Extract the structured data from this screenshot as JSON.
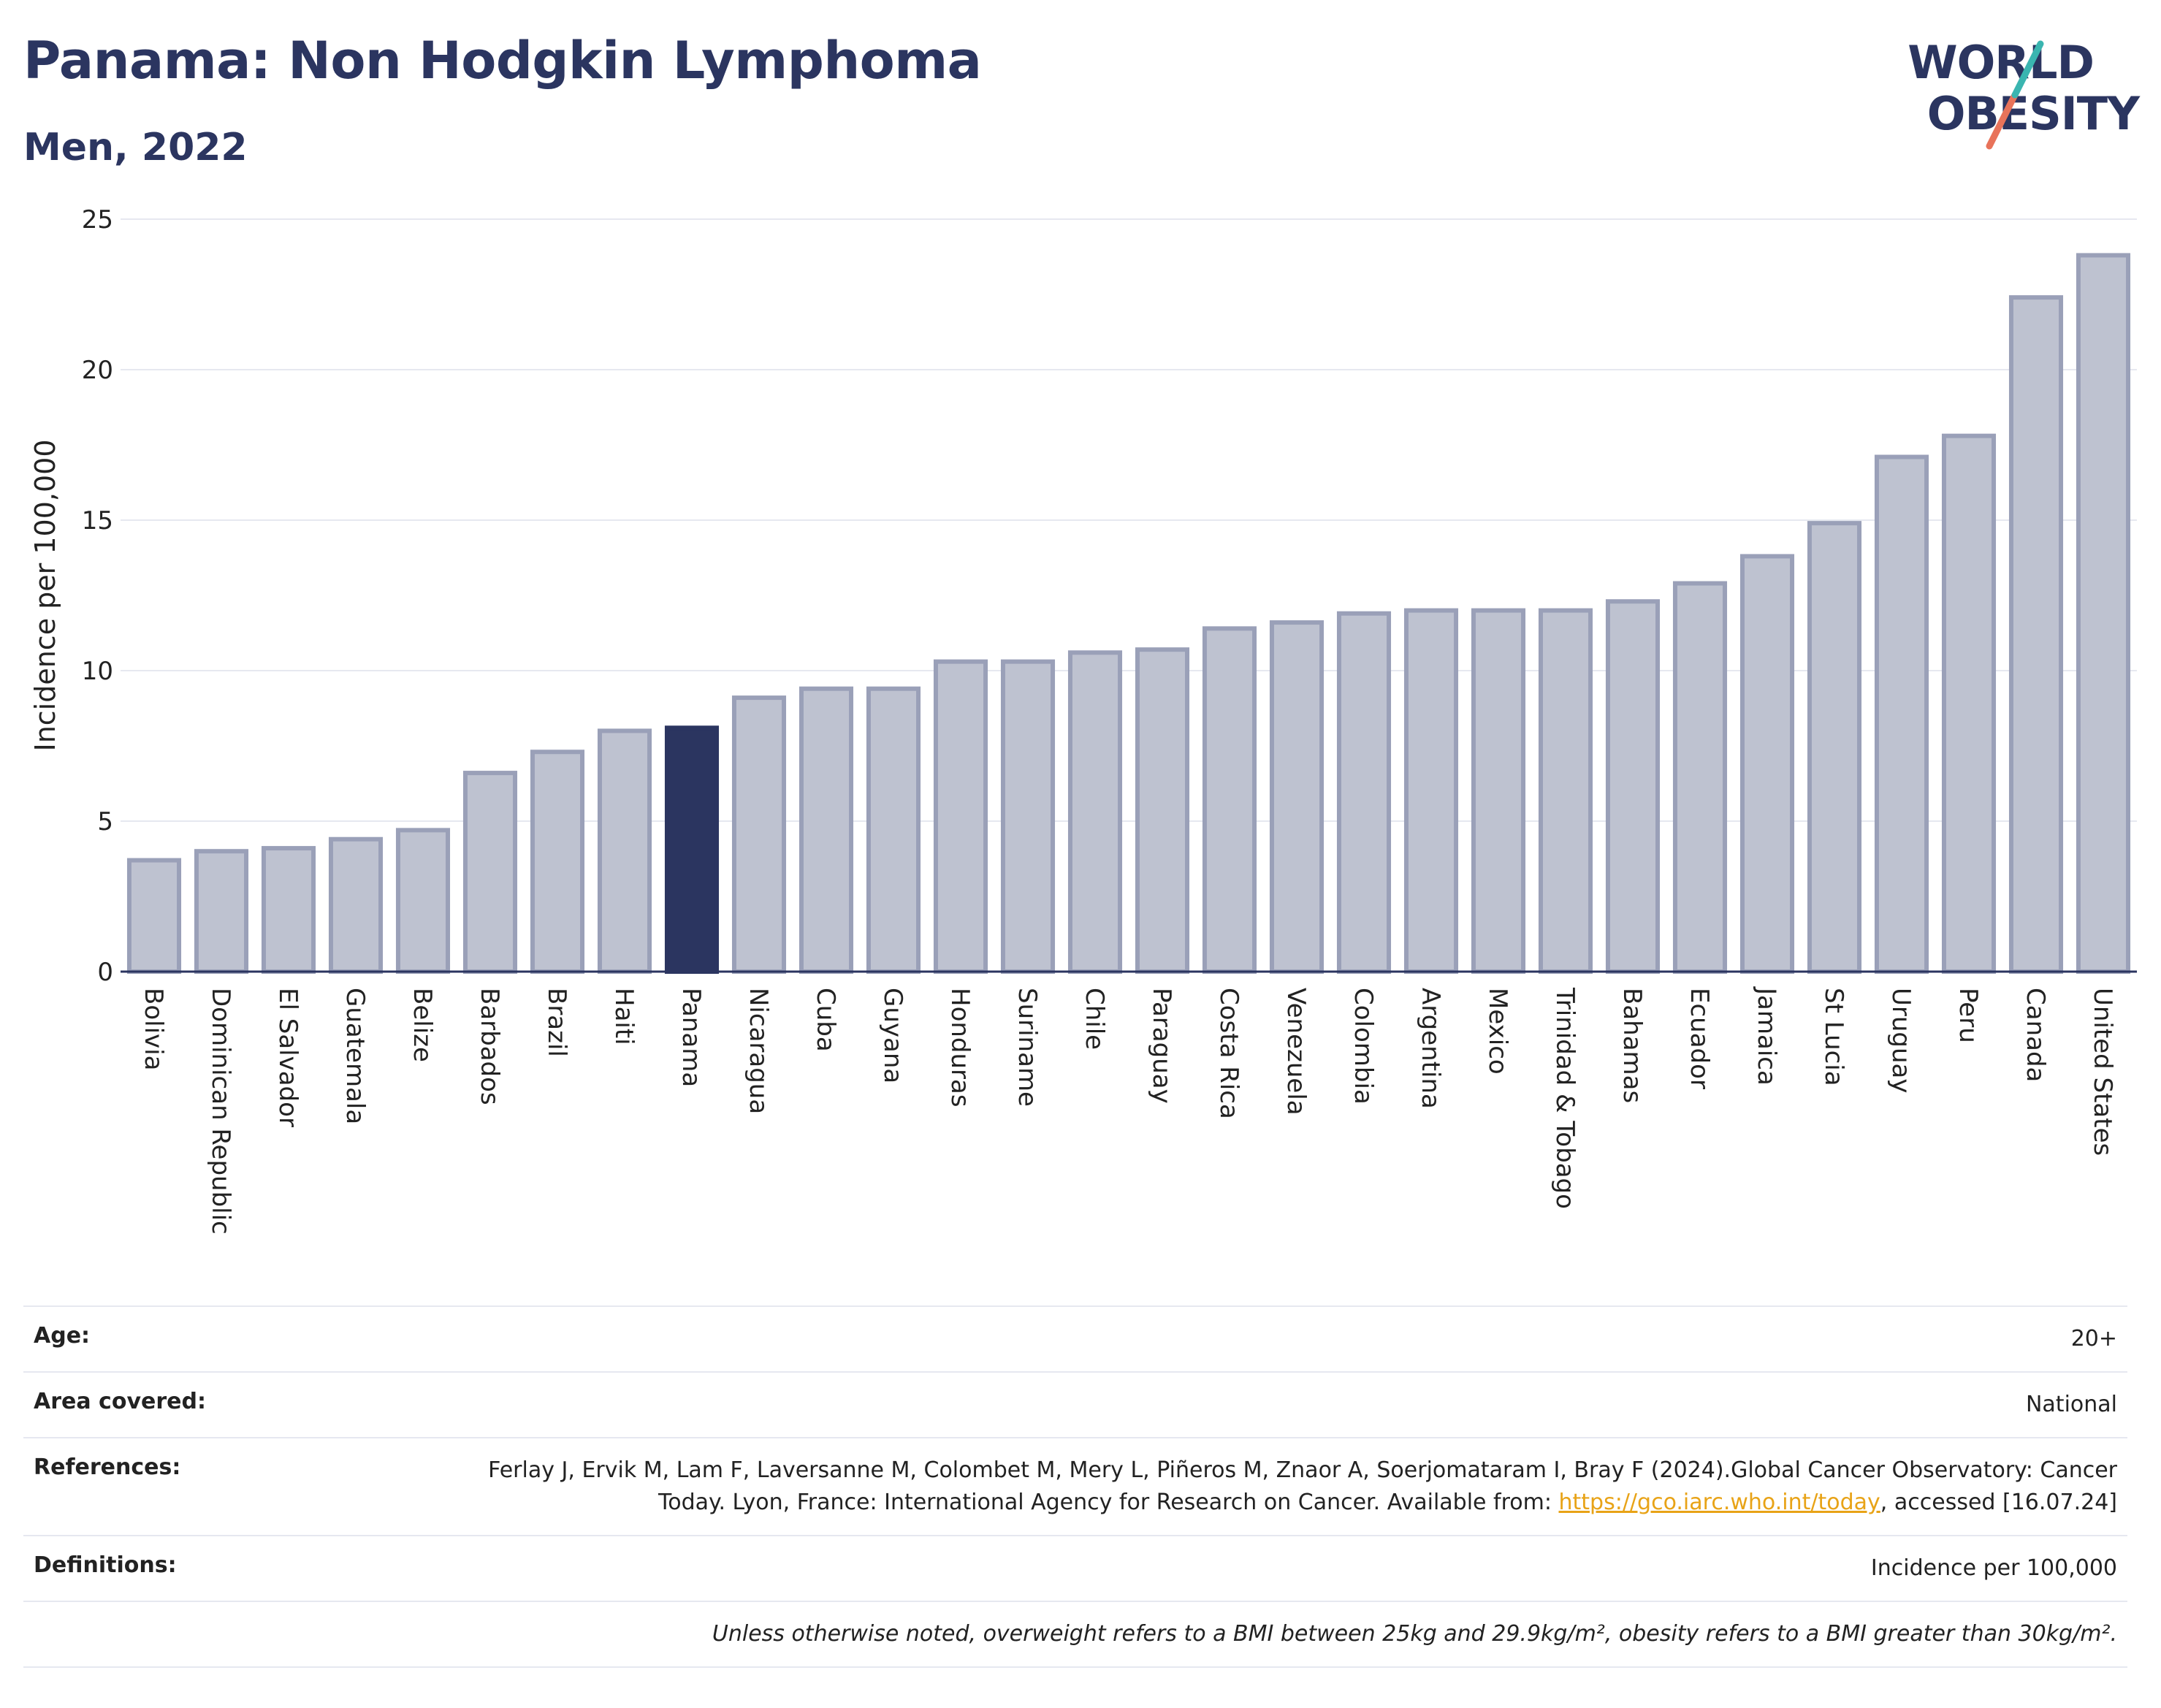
{
  "header": {
    "title": "Panama: Non Hodgkin Lymphoma",
    "subtitle": "Men, 2022"
  },
  "logo": {
    "line1": "WORLD",
    "line2": "OBESITY"
  },
  "colors": {
    "highlight": "#2b3560",
    "bar": "#bec2d0",
    "bar_edge": "#9aa0b8",
    "text": "#2b3560"
  },
  "chart_data": {
    "type": "bar",
    "ylabel": "Incidence per 100,000",
    "xlabel": "",
    "ylim": [
      0,
      25
    ],
    "yticks": [
      0,
      5,
      10,
      15,
      20,
      25
    ],
    "grid": true,
    "highlight": "Panama",
    "categories": [
      "Bolivia",
      "Dominican Republic",
      "El Salvador",
      "Guatemala",
      "Belize",
      "Barbados",
      "Brazil",
      "Haiti",
      "Panama",
      "Nicaragua",
      "Cuba",
      "Guyana",
      "Honduras",
      "Suriname",
      "Chile",
      "Paraguay",
      "Costa Rica",
      "Venezuela",
      "Colombia",
      "Argentina",
      "Mexico",
      "Trinidad & Tobago",
      "Bahamas",
      "Ecuador",
      "Jamaica",
      "St Lucia",
      "Uruguay",
      "Peru",
      "Canada",
      "United States"
    ],
    "values": [
      3.7,
      4.0,
      4.1,
      4.4,
      4.7,
      6.6,
      7.3,
      8.0,
      8.1,
      9.1,
      9.4,
      9.4,
      10.3,
      10.3,
      10.6,
      10.7,
      11.4,
      11.6,
      11.9,
      12.0,
      12.0,
      12.0,
      12.3,
      12.9,
      13.8,
      14.9,
      17.1,
      17.8,
      22.4,
      23.8
    ]
  },
  "info": {
    "age_label": "Age:",
    "age_value": "20+",
    "area_label": "Area covered:",
    "area_value": "National",
    "references_label": "References:",
    "references_text": "Ferlay J, Ervik M, Lam F, Laversanne M, Colombet M, Mery L, Piñeros M, Znaor A, Soerjomataram I, Bray F (2024).Global Cancer Observatory: Cancer Today. Lyon, France: International Agency for Research on Cancer. Available from: ",
    "references_link": "https://gco.iarc.who.int/today",
    "references_suffix": ", accessed [16.07.24]",
    "definitions_label": "Definitions:",
    "definitions_value": "Incidence per 100,000",
    "footnote": "Unless otherwise noted, overweight refers to a BMI between 25kg and 29.9kg/m², obesity refers to a BMI greater than 30kg/m²."
  }
}
